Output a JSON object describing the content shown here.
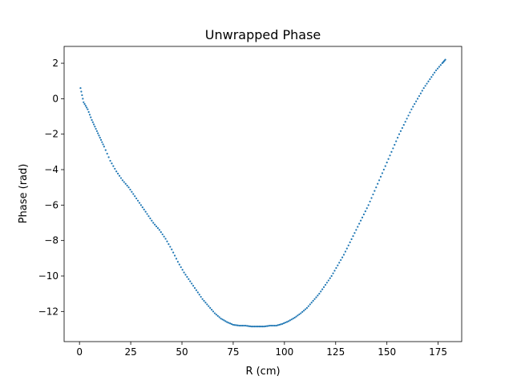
{
  "chart_data": {
    "type": "scatter",
    "title": "Unwrapped Phase",
    "xlabel": "R (cm)",
    "ylabel": "Phase (rad)",
    "xlim": [
      -7.5,
      186.5
    ],
    "ylim": [
      -13.7,
      2.95
    ],
    "x_ticks": [
      0,
      25,
      50,
      75,
      100,
      125,
      150,
      175
    ],
    "y_ticks": [
      2,
      0,
      -2,
      -4,
      -6,
      -8,
      -10,
      -12
    ],
    "x_tick_labels": [
      "0",
      "25",
      "50",
      "75",
      "100",
      "125",
      "150",
      "175"
    ],
    "y_tick_labels": [
      "2",
      "0",
      "−2",
      "−4",
      "−6",
      "−8",
      "−10",
      "−12"
    ],
    "grid": false,
    "marker_color": "#1f77b4",
    "series": [
      {
        "x": [
          0.5,
          2,
          4,
          6,
          8,
          10,
          12,
          15,
          18,
          21,
          24,
          27,
          30,
          33,
          36,
          39,
          42,
          45,
          48,
          51,
          54,
          57,
          60,
          63,
          66,
          69,
          72,
          75,
          78,
          81,
          84,
          87,
          90,
          93,
          96,
          99,
          102,
          105,
          108,
          111,
          114,
          117,
          120,
          123,
          126,
          129,
          132,
          135,
          138,
          141,
          144,
          147,
          150,
          153,
          156,
          159,
          162,
          165,
          168,
          171,
          174,
          177,
          178.5
        ],
        "y": [
          0.6,
          -0.2,
          -0.6,
          -1.2,
          -1.7,
          -2.2,
          -2.7,
          -3.5,
          -4.1,
          -4.6,
          -5.0,
          -5.5,
          -6.0,
          -6.5,
          -7.0,
          -7.4,
          -7.9,
          -8.5,
          -9.2,
          -9.8,
          -10.3,
          -10.8,
          -11.3,
          -11.7,
          -12.1,
          -12.4,
          -12.6,
          -12.75,
          -12.8,
          -12.8,
          -12.85,
          -12.85,
          -12.85,
          -12.8,
          -12.8,
          -12.7,
          -12.55,
          -12.35,
          -12.1,
          -11.8,
          -11.4,
          -11.0,
          -10.5,
          -10.0,
          -9.4,
          -8.8,
          -8.1,
          -7.4,
          -6.7,
          -6.0,
          -5.2,
          -4.4,
          -3.6,
          -2.8,
          -2.0,
          -1.3,
          -0.6,
          0.0,
          0.6,
          1.1,
          1.6,
          2.0,
          2.2
        ]
      }
    ]
  }
}
